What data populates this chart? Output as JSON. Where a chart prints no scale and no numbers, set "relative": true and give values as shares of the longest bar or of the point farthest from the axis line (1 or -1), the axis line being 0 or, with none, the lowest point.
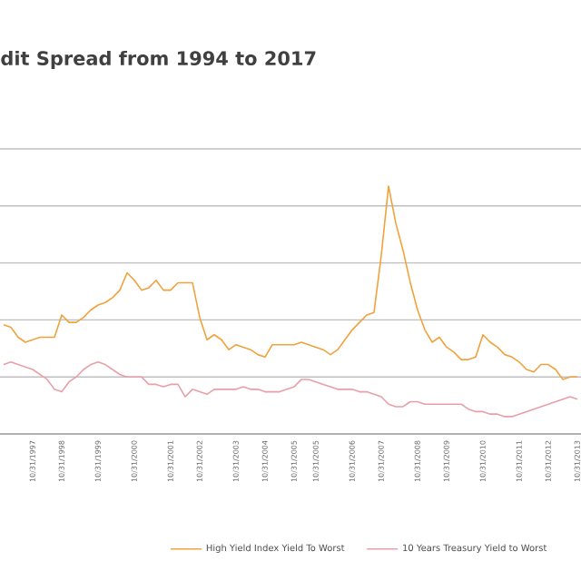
{
  "chart_data": {
    "type": "line",
    "title": "dit Spread from 1994 to 2017",
    "relative": true,
    "grid": "y",
    "legend": "bottom",
    "marker": "none",
    "line_style": "solid",
    "categories": [
      null,
      null,
      null,
      null,
      "10/31/1997",
      null,
      null,
      null,
      "10/31/1998",
      null,
      null,
      null,
      null,
      "10/31/1999",
      null,
      null,
      null,
      null,
      "10/31/2000",
      null,
      null,
      null,
      null,
      "10/31/2001",
      null,
      null,
      null,
      "10/31/2002",
      null,
      null,
      null,
      null,
      "10/31/2003",
      null,
      null,
      null,
      "10/31/2004",
      null,
      null,
      null,
      "10/31/2005",
      null,
      null,
      "10/31/2005",
      null,
      null,
      null,
      null,
      "10/31/2006",
      null,
      null,
      null,
      "10/31/2007",
      null,
      null,
      null,
      null,
      "10/31/2008",
      null,
      null,
      null,
      "10/31/2009",
      null,
      null,
      null,
      null,
      "10/31/2010",
      null,
      null,
      null,
      null,
      "10/31/2011",
      null,
      null,
      null,
      "10/31/2012",
      null,
      null,
      null,
      "10/31/2013"
    ],
    "series": [
      {
        "name": "High Yield Index Yield To Worst",
        "color": "#f0a23c",
        "values": [
          0.44,
          0.43,
          0.39,
          0.37,
          0.38,
          0.39,
          0.39,
          0.39,
          0.48,
          0.45,
          0.45,
          0.47,
          0.5,
          0.52,
          0.53,
          0.55,
          0.58,
          0.65,
          0.62,
          0.58,
          0.59,
          0.62,
          0.58,
          0.58,
          0.61,
          0.61,
          0.61,
          0.47,
          0.38,
          0.4,
          0.38,
          0.34,
          0.36,
          0.35,
          0.34,
          0.32,
          0.31,
          0.36,
          0.36,
          0.36,
          0.36,
          0.37,
          0.36,
          0.35,
          0.34,
          0.32,
          0.34,
          0.38,
          0.42,
          0.45,
          0.48,
          0.49,
          0.72,
          1,
          0.85,
          0.74,
          0.61,
          0.5,
          0.42,
          0.37,
          0.39,
          0.35,
          0.33,
          0.3,
          0.3,
          0.31,
          0.4,
          0.37,
          0.35,
          0.32,
          0.31,
          0.29,
          0.26,
          0.25,
          0.28,
          0.28,
          0.26,
          0.22,
          0.23,
          0.23
        ]
      },
      {
        "name": "10 Years Treasury Yield to Worst",
        "color": "#e8a0a8",
        "values": [
          0.28,
          0.29,
          0.28,
          0.27,
          0.26,
          0.24,
          0.22,
          0.18,
          0.17,
          0.21,
          0.23,
          0.26,
          0.28,
          0.29,
          0.28,
          0.26,
          0.24,
          0.23,
          0.23,
          0.23,
          0.2,
          0.2,
          0.19,
          0.2,
          0.2,
          0.15,
          0.18,
          0.17,
          0.16,
          0.18,
          0.18,
          0.18,
          0.18,
          0.19,
          0.18,
          0.18,
          0.17,
          0.17,
          0.17,
          0.18,
          0.19,
          0.22,
          0.22,
          0.21,
          0.2,
          0.19,
          0.18,
          0.18,
          0.18,
          0.17,
          0.17,
          0.16,
          0.15,
          0.12,
          0.11,
          0.11,
          0.13,
          0.13,
          0.12,
          0.12,
          0.12,
          0.12,
          0.12,
          0.12,
          0.1,
          0.09,
          0.09,
          0.08,
          0.08,
          0.07,
          0.07,
          0.08,
          0.09,
          0.1,
          0.11,
          0.12,
          0.13,
          0.14,
          0.15,
          0.14
        ]
      }
    ]
  }
}
